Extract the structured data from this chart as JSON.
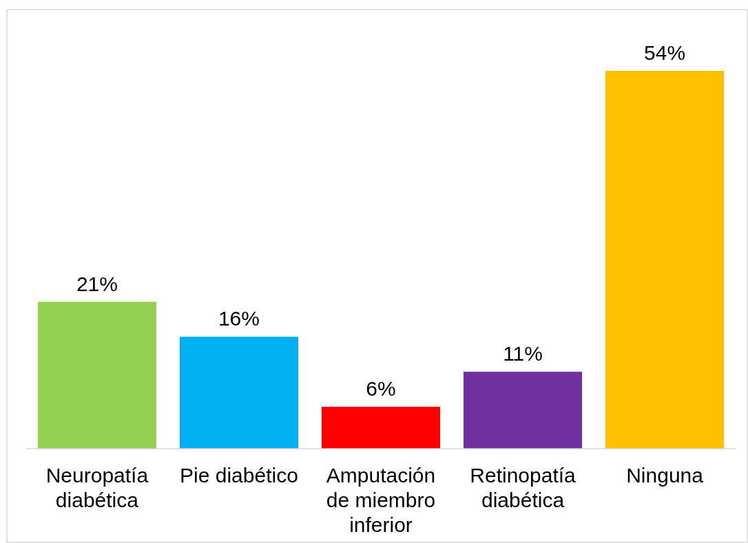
{
  "chart_data": {
    "type": "bar",
    "categories": [
      "Neuropatía diabética",
      "Pie diabético",
      "Amputación de miembro inferior",
      "Retinopatía diabética",
      "Ninguna"
    ],
    "values": [
      21,
      16,
      6,
      11,
      54
    ],
    "colors": [
      "#92d050",
      "#00b0f0",
      "#ff0000",
      "#7030a0",
      "#ffc000"
    ],
    "data_labels": true,
    "value_labels": [
      "21%",
      "16%",
      "6%",
      "11%",
      "54%"
    ]
  }
}
